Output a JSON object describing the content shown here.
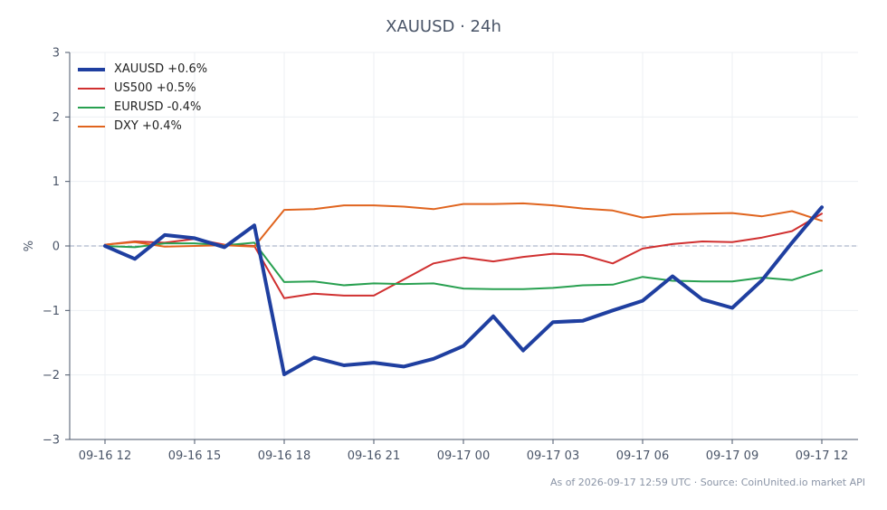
{
  "chart_data": {
    "type": "line",
    "title": "XAUUSD · 24h",
    "xlabel": "",
    "ylabel": "%",
    "ylim": [
      -3,
      3
    ],
    "yticks": [
      3,
      2,
      1,
      0,
      -1,
      -2,
      -3
    ],
    "ytick_labels": [
      "3",
      "2",
      "1",
      "0",
      "−1",
      "−2",
      "−3"
    ],
    "xticks": [
      0,
      3,
      6,
      9,
      12,
      15,
      18,
      21,
      24
    ],
    "xtick_labels": [
      "09-16 12",
      "09-16 15",
      "09-16 18",
      "09-16 21",
      "09-17 00",
      "09-17 03",
      "09-17 06",
      "09-17 09",
      "09-17 12"
    ],
    "grid": true,
    "zero_line": true,
    "legend_position": "top-left",
    "x": [
      0,
      1,
      2,
      3,
      4,
      5,
      6,
      7,
      8,
      9,
      10,
      11,
      12,
      13,
      14,
      15,
      16,
      17,
      18,
      19,
      20,
      21,
      22,
      23,
      24
    ],
    "series": [
      {
        "name": "XAUUSD +0.6%",
        "color": "#1f3fa0",
        "width": 4,
        "values": [
          0.0,
          -0.2,
          0.17,
          0.12,
          -0.02,
          0.32,
          -1.99,
          -1.73,
          -1.85,
          -1.81,
          -1.87,
          -1.75,
          -1.55,
          -1.09,
          -1.62,
          -1.18,
          -1.16,
          -1.0,
          -0.85,
          -0.47,
          -0.83,
          -0.96,
          -0.53,
          0.05,
          0.6
        ]
      },
      {
        "name": "US500 +0.5%",
        "color": "#d03030",
        "width": 2,
        "values": [
          0.02,
          0.07,
          0.05,
          0.11,
          0.02,
          0.0,
          -0.81,
          -0.74,
          -0.77,
          -0.77,
          -0.52,
          -0.27,
          -0.18,
          -0.24,
          -0.17,
          -0.12,
          -0.14,
          -0.27,
          -0.04,
          0.03,
          0.07,
          0.06,
          0.13,
          0.23,
          0.5
        ]
      },
      {
        "name": "EURUSD -0.4%",
        "color": "#28a050",
        "width": 2,
        "values": [
          0.0,
          -0.02,
          0.04,
          0.04,
          0.01,
          0.05,
          -0.56,
          -0.55,
          -0.61,
          -0.58,
          -0.59,
          -0.58,
          -0.66,
          -0.67,
          -0.67,
          -0.65,
          -0.61,
          -0.6,
          -0.48,
          -0.54,
          -0.55,
          -0.55,
          -0.49,
          -0.53,
          -0.38
        ]
      },
      {
        "name": "DXY +0.4%",
        "color": "#e0641e",
        "width": 2,
        "values": [
          0.02,
          0.06,
          -0.01,
          0.0,
          0.01,
          -0.01,
          0.56,
          0.57,
          0.63,
          0.63,
          0.61,
          0.57,
          0.65,
          0.65,
          0.66,
          0.63,
          0.58,
          0.55,
          0.44,
          0.49,
          0.5,
          0.51,
          0.46,
          0.54,
          0.39
        ]
      }
    ]
  },
  "footnote": "As of 2026-09-17 12:59 UTC · Source: CoinUnited.io market API"
}
